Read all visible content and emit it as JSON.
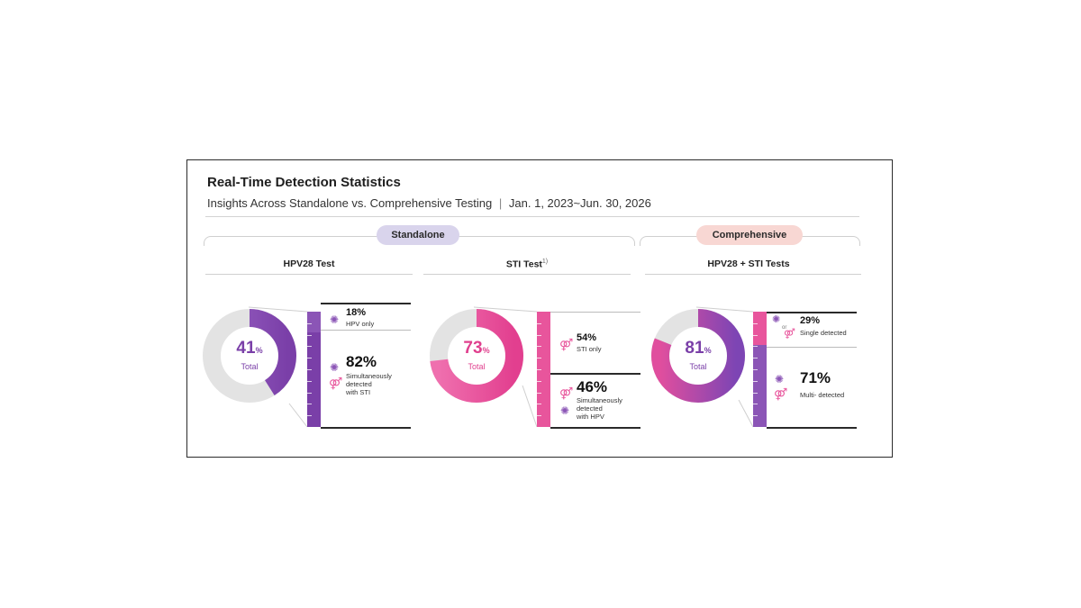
{
  "header": {
    "title": "Real-Time Detection Statistics",
    "subtitle": "Insights Across Standalone vs. Comprehensive Testing",
    "separator": "|",
    "date_range": "Jan. 1, 2023~Jun. 30, 2026"
  },
  "groups": [
    {
      "label": "Standalone",
      "color": "#d9d4ec"
    },
    {
      "label": "Comprehensive",
      "color": "#f8d7d3"
    }
  ],
  "columns": [
    {
      "title": "HPV28 Test",
      "sup": ""
    },
    {
      "title": "STI Test",
      "sup": "1)"
    },
    {
      "title": "HPV28 + STI Tests",
      "sup": ""
    }
  ],
  "donuts": [
    {
      "value": "41",
      "unit": "%",
      "label": "Total",
      "color": "#8b55b6"
    },
    {
      "value": "73",
      "unit": "%",
      "label": "Total",
      "color": "#e8559c"
    },
    {
      "value": "81",
      "unit": "%",
      "label": "Total",
      "color": "#8b55b6"
    }
  ],
  "breakdowns": [
    {
      "top": {
        "value": "18%",
        "label": "HPV only"
      },
      "bottom": {
        "value": "82%",
        "label_lines": [
          "Simultaneously",
          "detected",
          "with STI"
        ]
      }
    },
    {
      "top": {
        "value": "54%",
        "label": "STI only"
      },
      "bottom": {
        "value": "46%",
        "label_lines": [
          "Simultaneously",
          "detected",
          "with HPV"
        ]
      }
    },
    {
      "top": {
        "value": "29%",
        "label": "Single detected",
        "or": "or"
      },
      "bottom": {
        "value": "71%",
        "label": "Multi- detected"
      }
    }
  ],
  "icons": {
    "virus": "virus-icon",
    "gender": "gender-symbol-icon"
  },
  "chart_data": [
    {
      "type": "pie",
      "title": "HPV28 Test",
      "slices": [
        {
          "label": "Total",
          "value": 41
        },
        {
          "label": "",
          "value": 59
        }
      ],
      "breakdown": [
        {
          "label": "HPV only",
          "value": 18
        },
        {
          "label": "Simultaneously detected with STI",
          "value": 82
        }
      ]
    },
    {
      "type": "pie",
      "title": "STI Test",
      "slices": [
        {
          "label": "Total",
          "value": 73
        },
        {
          "label": "",
          "value": 27
        }
      ],
      "breakdown": [
        {
          "label": "STI only",
          "value": 54
        },
        {
          "label": "Simultaneously detected with HPV",
          "value": 46
        }
      ]
    },
    {
      "type": "pie",
      "title": "HPV28 + STI Tests",
      "slices": [
        {
          "label": "Total",
          "value": 81
        },
        {
          "label": "",
          "value": 19
        }
      ],
      "breakdown": [
        {
          "label": "Single detected",
          "value": 29
        },
        {
          "label": "Multi- detected",
          "value": 71
        }
      ]
    }
  ]
}
